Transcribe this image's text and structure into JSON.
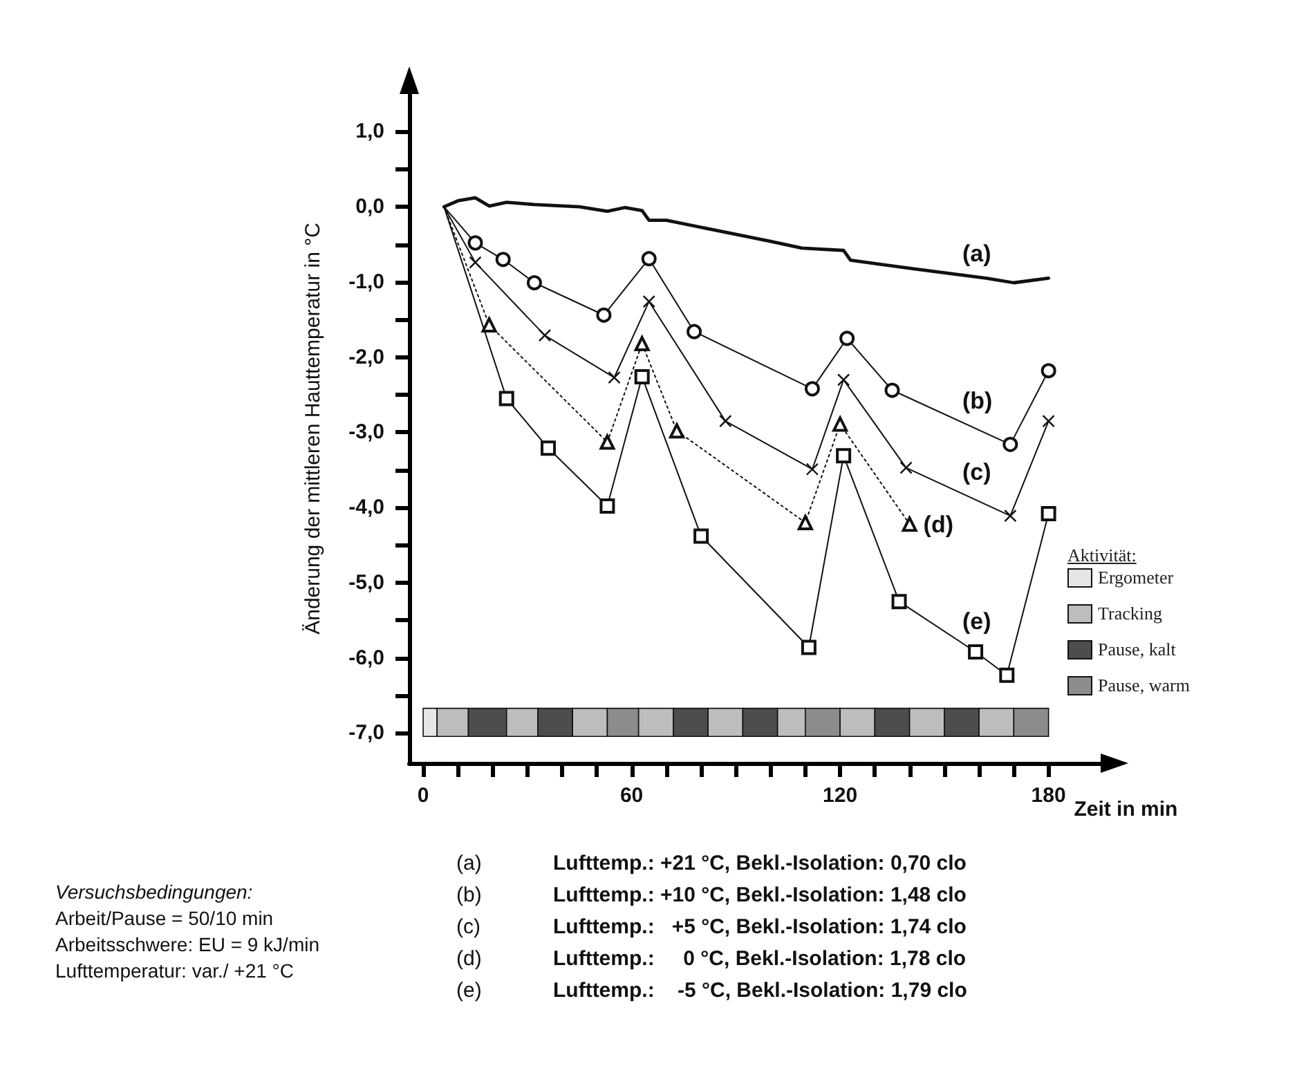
{
  "chart_data": {
    "type": "line",
    "ylabel": "Änderung der mittleren Hauttemperatur in °C",
    "xlabel": "Zeit in min",
    "legend_title": "Aktivität:",
    "legend": "right",
    "grid": false,
    "xlim": [
      -4,
      195
    ],
    "ylim": [
      -7.4,
      1.5
    ],
    "xticks": [
      0,
      {
        "value": 10,
        "label": null
      },
      {
        "value": 20,
        "label": null
      },
      {
        "value": 30,
        "label": null
      },
      {
        "value": 40,
        "label": null
      },
      {
        "value": 50,
        "label": null
      },
      60,
      {
        "value": 70,
        "label": null
      },
      {
        "value": 80,
        "label": null
      },
      {
        "value": 90,
        "label": null
      },
      {
        "value": 100,
        "label": null
      },
      {
        "value": 110,
        "label": null
      },
      120,
      {
        "value": 130,
        "label": null
      },
      {
        "value": 140,
        "label": null
      },
      {
        "value": 150,
        "label": null
      },
      {
        "value": 160,
        "label": null
      },
      {
        "value": 170,
        "label": null
      },
      180
    ],
    "yticks": [
      {
        "value": -7,
        "label": "-7,0"
      },
      {
        "value": -6.5,
        "label": null
      },
      {
        "value": -6,
        "label": "-6,0"
      },
      {
        "value": -5.5,
        "label": null
      },
      {
        "value": -5,
        "label": "-5,0"
      },
      {
        "value": -4.5,
        "label": null
      },
      {
        "value": -4,
        "label": "-4,0"
      },
      {
        "value": -3.5,
        "label": null
      },
      {
        "value": -3,
        "label": "-3,0"
      },
      {
        "value": -2.5,
        "label": null
      },
      {
        "value": -2,
        "label": "-2,0"
      },
      {
        "value": -1.5,
        "label": null
      },
      {
        "value": -1,
        "label": "-1,0"
      },
      {
        "value": -0.5,
        "label": null
      },
      {
        "value": 0,
        "label": "0,0"
      },
      {
        "value": 0.5,
        "label": null
      },
      {
        "value": 1,
        "label": "1,0"
      }
    ],
    "series": [
      {
        "name": "(a)",
        "color": "#111111",
        "marker": "none",
        "line_style": "solid",
        "x": [
          6,
          10,
          15,
          19,
          24,
          32,
          45,
          53,
          58,
          63,
          65,
          70,
          85,
          100,
          109,
          121,
          123,
          142,
          162,
          170,
          180
        ],
        "values": [
          0,
          0.08,
          0.12,
          0.01,
          0.06,
          0.03,
          0,
          -0.06,
          -0.01,
          -0.05,
          -0.18,
          -0.18,
          -0.32,
          -0.46,
          -0.55,
          -0.58,
          -0.71,
          -0.83,
          -0.95,
          -1.01,
          -0.95
        ]
      },
      {
        "name": "(b)",
        "color": "#111111",
        "marker": "circle",
        "line_style": "solid",
        "x": [
          6,
          15,
          23,
          32,
          52,
          65,
          78,
          112,
          122,
          135,
          169,
          180
        ],
        "values": [
          0,
          -0.48,
          -0.7,
          -1.01,
          -1.44,
          -0.69,
          -1.66,
          -2.42,
          -1.75,
          -2.44,
          -3.16,
          -2.18
        ]
      },
      {
        "name": "(c)",
        "color": "#111111",
        "marker": "cross",
        "line_style": "solid",
        "x": [
          6,
          15,
          35,
          55,
          65,
          87,
          112,
          121,
          139,
          169,
          180
        ],
        "values": [
          0,
          -0.74,
          -1.71,
          -2.27,
          -1.26,
          -2.85,
          -3.49,
          -2.3,
          -3.47,
          -4.11,
          -2.85
        ]
      },
      {
        "name": "(d)",
        "color": "#111111",
        "marker": "triangle",
        "line_style": "dotted",
        "x": [
          6,
          19,
          53,
          63,
          73,
          110,
          120,
          140
        ],
        "values": [
          0,
          -1.57,
          -3.13,
          -1.82,
          -2.98,
          -4.2,
          -2.89,
          -4.22
        ]
      },
      {
        "name": "(e)",
        "color": "#111111",
        "marker": "square",
        "line_style": "solid",
        "x": [
          6,
          24,
          36,
          53,
          63,
          80,
          111,
          121,
          137,
          159,
          168,
          180
        ],
        "values": [
          0,
          -2.55,
          -3.21,
          -3.98,
          -2.26,
          -4.38,
          -5.86,
          -3.31,
          -5.25,
          -5.92,
          -6.23,
          -4.08
        ]
      }
    ],
    "bands": [
      {
        "axis": "x",
        "from": 0,
        "to": 4,
        "label": "Ergometer",
        "color": "#e6e6e6"
      },
      {
        "axis": "x",
        "from": 4,
        "to": 13,
        "label": "Tracking",
        "color": "#bdbdbd"
      },
      {
        "axis": "x",
        "from": 13,
        "to": 24,
        "label": "Pause, kalt",
        "color": "#4d4d4d"
      },
      {
        "axis": "x",
        "from": 24,
        "to": 33,
        "color": "#bdbdbd"
      },
      {
        "axis": "x",
        "from": 33,
        "to": 43,
        "color": "#4d4d4d"
      },
      {
        "axis": "x",
        "from": 43,
        "to": 53,
        "color": "#bdbdbd"
      },
      {
        "axis": "x",
        "from": 53,
        "to": 62,
        "label": "Pause, warm",
        "color": "#8c8c8c"
      },
      {
        "axis": "x",
        "from": 62,
        "to": 72,
        "color": "#bdbdbd"
      },
      {
        "axis": "x",
        "from": 72,
        "to": 82,
        "color": "#4d4d4d"
      },
      {
        "axis": "x",
        "from": 82,
        "to": 92,
        "color": "#bdbdbd"
      },
      {
        "axis": "x",
        "from": 92,
        "to": 102,
        "color": "#4d4d4d"
      },
      {
        "axis": "x",
        "from": 102,
        "to": 110,
        "color": "#bdbdbd"
      },
      {
        "axis": "x",
        "from": 110,
        "to": 120,
        "color": "#8c8c8c"
      },
      {
        "axis": "x",
        "from": 120,
        "to": 130,
        "color": "#bdbdbd"
      },
      {
        "axis": "x",
        "from": 130,
        "to": 140,
        "color": "#4d4d4d"
      },
      {
        "axis": "x",
        "from": 140,
        "to": 150,
        "color": "#bdbdbd"
      },
      {
        "axis": "x",
        "from": 150,
        "to": 160,
        "color": "#4d4d4d"
      },
      {
        "axis": "x",
        "from": 160,
        "to": 170,
        "color": "#bdbdbd"
      },
      {
        "axis": "x",
        "from": 170,
        "to": 180,
        "color": "#8c8c8c"
      }
    ],
    "annotations": [
      "Versuchsbedingungen:",
      "Arbeit/Pause = 50/10 min",
      "Arbeitsschwere: EU = 9 kJ/min",
      "Lufttemperatur: var./ +21 °C",
      "Lufttemp.: +21 °C, Bekl.-Isolation: 0,70 clo",
      "Lufttemp.: +10 °C, Bekl.-Isolation: 1,48 clo",
      "Lufttemp.:   +5 °C, Bekl.-Isolation: 1,74 clo",
      "Lufttemp.:     0 °C, Bekl.-Isolation: 1,78 clo",
      "Lufttemp.:    -5 °C, Bekl.-Isolation: 1,79 clo"
    ]
  }
}
